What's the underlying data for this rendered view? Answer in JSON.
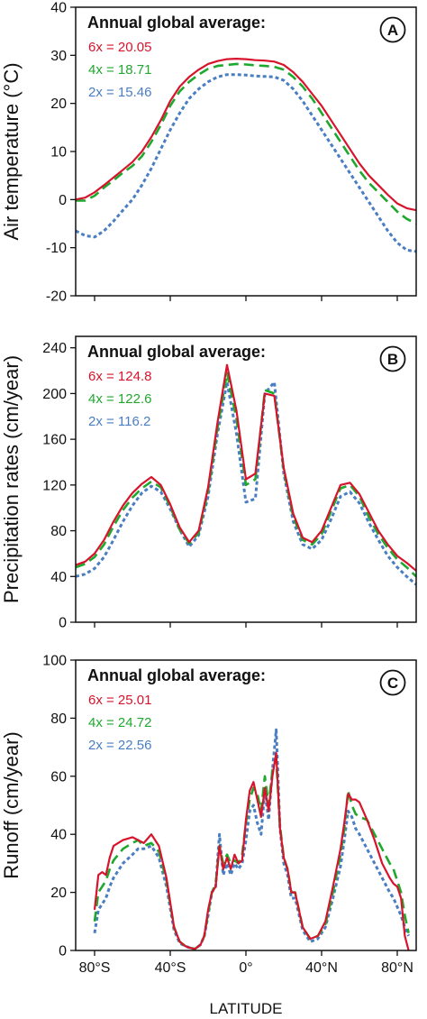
{
  "colors": {
    "6x": "#d7142b",
    "4x": "#1fa82e",
    "2x": "#4a7ec2"
  },
  "x_axis": {
    "label": "LATITUDE",
    "ticks": [
      {
        "value": -80,
        "label": "80°S"
      },
      {
        "value": -40,
        "label": "40°S"
      },
      {
        "value": 0,
        "label": "0°"
      },
      {
        "value": 40,
        "label": "40°N"
      },
      {
        "value": 80,
        "label": "80°N"
      }
    ]
  },
  "chart_data": [
    {
      "type": "line",
      "panel": "A",
      "ylabel": "Air temperature (°C)",
      "ylim": [
        -20,
        40
      ],
      "yticks": [
        -20,
        -10,
        0,
        10,
        20,
        30,
        40
      ],
      "xlim": [
        -90,
        90
      ],
      "legend": {
        "title": "Annual global average:",
        "entries": [
          {
            "series": "6x",
            "text": "6x = 20.05"
          },
          {
            "series": "4x",
            "text": "4x = 18.71"
          },
          {
            "series": "2x",
            "text": "2x = 15.46"
          }
        ]
      },
      "series": [
        {
          "key": "6x",
          "style": "solid",
          "x": [
            -90,
            -85,
            -80,
            -75,
            -70,
            -65,
            -60,
            -55,
            -50,
            -45,
            -40,
            -35,
            -30,
            -25,
            -20,
            -15,
            -10,
            -5,
            0,
            5,
            10,
            15,
            20,
            25,
            30,
            35,
            40,
            45,
            50,
            55,
            60,
            65,
            70,
            75,
            80,
            85,
            90
          ],
          "y": [
            0,
            0.4,
            1.5,
            3,
            4.6,
            6.2,
            7.8,
            10,
            13,
            16.5,
            20.5,
            23.5,
            25.5,
            27,
            28.2,
            28.8,
            29.2,
            29.3,
            29.2,
            29,
            28.9,
            28.7,
            28,
            26.5,
            24.5,
            22,
            19.5,
            16.5,
            13.5,
            10.5,
            7.5,
            5,
            3,
            1,
            -0.8,
            -1.8,
            -2.2
          ]
        },
        {
          "key": "4x",
          "style": "dashed",
          "x": [
            -90,
            -85,
            -80,
            -75,
            -70,
            -65,
            -60,
            -55,
            -50,
            -45,
            -40,
            -35,
            -30,
            -25,
            -20,
            -15,
            -10,
            -5,
            0,
            5,
            10,
            15,
            20,
            25,
            30,
            35,
            40,
            45,
            50,
            55,
            60,
            65,
            70,
            75,
            80,
            85,
            90
          ],
          "y": [
            -0.2,
            -0.2,
            0.8,
            2.5,
            4,
            5.6,
            7,
            9,
            12,
            15.5,
            19.5,
            22.5,
            24.5,
            26,
            27.2,
            27.8,
            28,
            28.2,
            28.1,
            27.9,
            27.8,
            27.6,
            27,
            25.5,
            23.5,
            21,
            18,
            15,
            12,
            9,
            6,
            3.5,
            1.5,
            -0.5,
            -2.5,
            -4,
            -5
          ]
        },
        {
          "key": "2x",
          "style": "dotted",
          "x": [
            -90,
            -85,
            -80,
            -75,
            -70,
            -65,
            -60,
            -55,
            -50,
            -45,
            -40,
            -35,
            -30,
            -25,
            -20,
            -15,
            -10,
            -5,
            0,
            5,
            10,
            15,
            20,
            25,
            30,
            35,
            40,
            45,
            50,
            55,
            60,
            65,
            70,
            75,
            80,
            85,
            90
          ],
          "y": [
            -6.5,
            -7.5,
            -7.8,
            -6.5,
            -4.5,
            -2.2,
            0,
            3,
            6.5,
            10.5,
            14.5,
            18,
            21,
            23,
            24.5,
            25.5,
            26,
            26,
            25.9,
            25.7,
            25.6,
            25.5,
            24.8,
            23,
            20.5,
            17.5,
            14.5,
            11.5,
            8.5,
            5.5,
            2.5,
            -0.5,
            -3.5,
            -6.5,
            -9,
            -10.5,
            -10.8
          ]
        }
      ]
    },
    {
      "type": "line",
      "panel": "B",
      "ylabel": "Precipitation rates (cm/year)",
      "ylim": [
        0,
        250
      ],
      "yticks": [
        0,
        40,
        80,
        120,
        160,
        200,
        240
      ],
      "xlim": [
        -90,
        90
      ],
      "legend": {
        "title": "Annual global average:",
        "entries": [
          {
            "series": "6x",
            "text": "6x = 124.8"
          },
          {
            "series": "4x",
            "text": "4x = 122.6"
          },
          {
            "series": "2x",
            "text": "2x = 116.2"
          }
        ]
      },
      "series": [
        {
          "key": "6x",
          "style": "solid",
          "x": [
            -90,
            -85,
            -80,
            -75,
            -70,
            -65,
            -60,
            -55,
            -50,
            -45,
            -40,
            -35,
            -30,
            -25,
            -20,
            -15,
            -10,
            -5,
            0,
            5,
            10,
            15,
            20,
            25,
            30,
            35,
            40,
            45,
            50,
            55,
            60,
            65,
            70,
            75,
            80,
            85,
            90
          ],
          "y": [
            50,
            53,
            60,
            72,
            88,
            102,
            113,
            121,
            127,
            120,
            103,
            83,
            70,
            80,
            118,
            175,
            225,
            185,
            125,
            130,
            200,
            198,
            135,
            95,
            74,
            70,
            80,
            100,
            120,
            122,
            112,
            96,
            80,
            68,
            58,
            52,
            45
          ]
        },
        {
          "key": "4x",
          "style": "dashed",
          "x": [
            -90,
            -85,
            -80,
            -75,
            -70,
            -65,
            -60,
            -55,
            -50,
            -45,
            -40,
            -35,
            -30,
            -25,
            -20,
            -15,
            -10,
            -5,
            0,
            5,
            10,
            15,
            20,
            25,
            30,
            35,
            40,
            45,
            50,
            55,
            60,
            65,
            70,
            75,
            80,
            85,
            90
          ],
          "y": [
            48,
            51,
            57,
            68,
            84,
            98,
            109,
            117,
            123,
            118,
            101,
            81,
            69,
            78,
            115,
            170,
            218,
            178,
            120,
            125,
            203,
            200,
            133,
            92,
            72,
            68,
            77,
            97,
            117,
            120,
            110,
            92,
            77,
            65,
            55,
            48,
            40
          ]
        },
        {
          "key": "2x",
          "style": "dotted",
          "x": [
            -90,
            -85,
            -80,
            -75,
            -70,
            -65,
            -60,
            -55,
            -50,
            -45,
            -40,
            -35,
            -30,
            -25,
            -20,
            -15,
            -10,
            -5,
            0,
            5,
            10,
            15,
            20,
            25,
            30,
            35,
            40,
            45,
            50,
            55,
            60,
            65,
            70,
            75,
            80,
            85,
            90
          ],
          "y": [
            40,
            42,
            47,
            57,
            72,
            88,
            102,
            113,
            119,
            114,
            99,
            81,
            66,
            76,
            110,
            165,
            210,
            165,
            105,
            108,
            200,
            210,
            130,
            88,
            68,
            64,
            72,
            90,
            110,
            114,
            104,
            87,
            72,
            58,
            48,
            40,
            33
          ]
        }
      ]
    },
    {
      "type": "line",
      "panel": "C",
      "ylabel": "Runoff (cm/year)",
      "ylim": [
        0,
        100
      ],
      "yticks": [
        0,
        20,
        40,
        60,
        80,
        100
      ],
      "xlim": [
        -90,
        90
      ],
      "legend": {
        "title": "Annual global average:",
        "entries": [
          {
            "series": "6x",
            "text": "6x = 25.01"
          },
          {
            "series": "4x",
            "text": "4x = 24.72"
          },
          {
            "series": "2x",
            "text": "2x = 22.56"
          }
        ]
      },
      "series": [
        {
          "key": "6x",
          "style": "solid",
          "x": [
            -80,
            -78,
            -76,
            -74,
            -72,
            -70,
            -65,
            -60,
            -57,
            -54,
            -50,
            -46,
            -42,
            -38,
            -35,
            -32,
            -30,
            -27,
            -24,
            -22,
            -20,
            -18,
            -16,
            -14,
            -12,
            -10,
            -8,
            -6,
            -4,
            -2,
            0,
            2,
            4,
            6,
            8,
            10,
            12,
            14,
            16,
            18,
            20,
            22,
            24,
            26,
            30,
            34,
            38,
            42,
            46,
            50,
            52,
            54,
            56,
            58,
            60,
            64,
            68,
            72,
            76,
            78,
            80,
            82,
            84,
            86
          ],
          "y": [
            14,
            26,
            27,
            26,
            32,
            36,
            38,
            39,
            38,
            37,
            40,
            36,
            25,
            8,
            3,
            1.5,
            1,
            0.5,
            2,
            5,
            14,
            20,
            22,
            36,
            28,
            32,
            28,
            33,
            30,
            31,
            45,
            55,
            58,
            52,
            46,
            56,
            48,
            60,
            68,
            42,
            32,
            28,
            20,
            20,
            8,
            4,
            5,
            10,
            22,
            35,
            44,
            54,
            52,
            52,
            51,
            45,
            38,
            30,
            25,
            23,
            22,
            18,
            5,
            0
          ]
        },
        {
          "key": "4x",
          "style": "dashed",
          "x": [
            -80,
            -78,
            -76,
            -74,
            -72,
            -70,
            -65,
            -60,
            -57,
            -54,
            -50,
            -46,
            -42,
            -38,
            -35,
            -32,
            -30,
            -27,
            -24,
            -22,
            -20,
            -18,
            -16,
            -14,
            -12,
            -10,
            -8,
            -6,
            -4,
            -2,
            0,
            2,
            4,
            6,
            8,
            10,
            12,
            14,
            16,
            18,
            20,
            22,
            24,
            26,
            30,
            34,
            38,
            42,
            46,
            50,
            52,
            54,
            56,
            58,
            60,
            64,
            68,
            72,
            76,
            78,
            80,
            82,
            84,
            86
          ],
          "y": [
            10,
            20,
            22,
            24,
            28,
            31,
            35,
            37,
            38,
            36,
            37,
            34,
            24,
            8,
            3,
            1.5,
            1,
            0.5,
            2,
            5,
            13,
            20,
            23,
            36,
            30,
            33,
            30,
            31,
            30,
            33,
            44,
            52,
            56,
            54,
            48,
            60,
            50,
            62,
            66,
            43,
            32,
            28,
            20,
            20,
            8,
            4,
            5,
            9,
            20,
            33,
            42,
            55,
            50,
            47,
            46,
            45,
            40,
            35,
            30,
            28,
            24,
            20,
            12,
            6
          ]
        },
        {
          "key": "2x",
          "style": "dotted",
          "x": [
            -80,
            -78,
            -76,
            -74,
            -72,
            -70,
            -65,
            -60,
            -57,
            -54,
            -50,
            -46,
            -42,
            -38,
            -35,
            -32,
            -30,
            -27,
            -24,
            -22,
            -20,
            -18,
            -16,
            -14,
            -12,
            -10,
            -8,
            -6,
            -4,
            -2,
            0,
            2,
            4,
            6,
            8,
            10,
            12,
            14,
            16,
            18,
            20,
            22,
            24,
            26,
            30,
            34,
            38,
            42,
            46,
            50,
            52,
            54,
            56,
            58,
            60,
            64,
            68,
            72,
            76,
            78,
            80,
            82,
            84,
            86
          ],
          "y": [
            6,
            14,
            16,
            18,
            22,
            25,
            30,
            33,
            35,
            35,
            36,
            32,
            22,
            7,
            2.5,
            1.5,
            1,
            0.5,
            2,
            5,
            12,
            20,
            22,
            40,
            26,
            30,
            26,
            30,
            28,
            30,
            38,
            48,
            50,
            44,
            40,
            55,
            45,
            62,
            76,
            42,
            30,
            26,
            18,
            18,
            7,
            3,
            4,
            8,
            18,
            29,
            38,
            48,
            46,
            42,
            40,
            35,
            30,
            25,
            20,
            18,
            15,
            12,
            8,
            5
          ]
        }
      ]
    }
  ]
}
